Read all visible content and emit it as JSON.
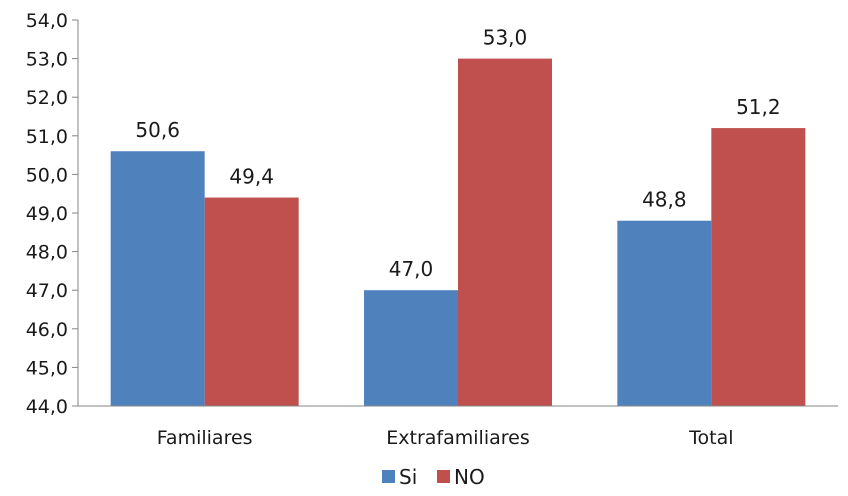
{
  "chart_data": {
    "type": "bar",
    "title": "",
    "xlabel": "",
    "ylabel": "",
    "categories": [
      "Familiares",
      "Extrafamiliares",
      "Total"
    ],
    "series": [
      {
        "name": "Si",
        "values": [
          50.6,
          47.0,
          48.8
        ],
        "color": "#4F81BD"
      },
      {
        "name": "NO",
        "values": [
          49.4,
          53.0,
          51.2
        ],
        "color": "#C0504D"
      }
    ],
    "ylim": [
      44.0,
      54.0
    ],
    "ytick_step": 1.0,
    "yticks": [
      "44,0",
      "45,0",
      "46,0",
      "47,0",
      "48,0",
      "49,0",
      "50,0",
      "51,0",
      "52,0",
      "53,0",
      "54,0"
    ],
    "data_labels": [
      [
        "50,6",
        "47,0",
        "48,8"
      ],
      [
        "49,4",
        "53,0",
        "51,2"
      ]
    ],
    "grid": false,
    "legend_position": "bottom"
  }
}
